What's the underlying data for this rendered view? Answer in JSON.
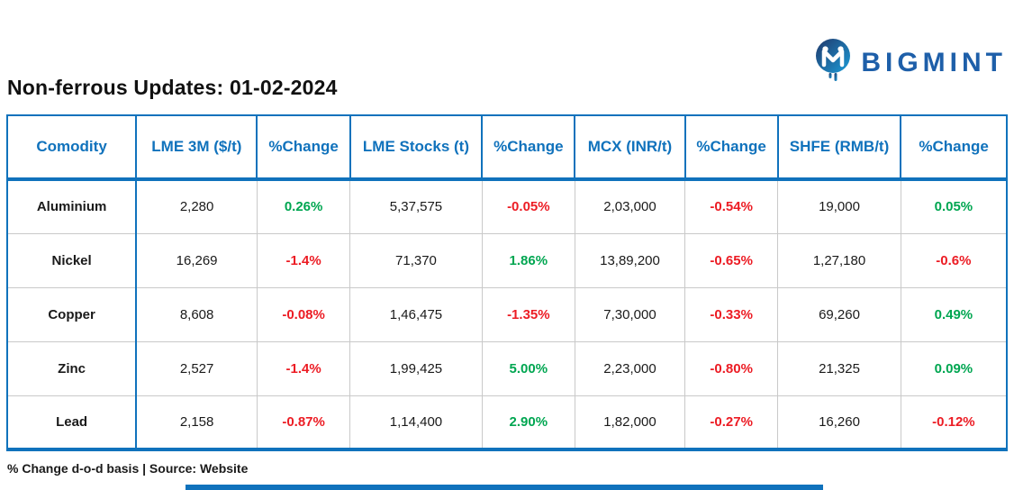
{
  "brand": {
    "name": "BIGMINT"
  },
  "title": "Non-ferrous Updates: 01-02-2024",
  "footnote": "% Change d-o-d basis | Source: Website",
  "colors": {
    "header_blue": "#1072BC",
    "positive_green": "#00A651",
    "negative_red": "#EC1C24",
    "grid_gray": "#C9C9C9",
    "text_black": "#1A1A1A",
    "logo_navy": "#21386B",
    "logo_light_blue": "#1B9CD8"
  },
  "chart_data": {
    "type": "table",
    "title": "Non-ferrous Updates: 01-02-2024",
    "columns": [
      "Comodity",
      "LME 3M ($/t)",
      "%Change",
      "LME Stocks (t)",
      "%Change",
      "MCX (INR/t)",
      "%Change",
      "SHFE (RMB/t)",
      "%Change"
    ],
    "rows": [
      [
        "Aluminium",
        "2,280",
        "0.26%",
        "5,37,575",
        "-0.05%",
        "2,03,000",
        "-0.54%",
        "19,000",
        "0.05%"
      ],
      [
        "Nickel",
        "16,269",
        "-1.4%",
        "71,370",
        "1.86%",
        "13,89,200",
        "-0.65%",
        "1,27,180",
        "-0.6%"
      ],
      [
        "Copper",
        "8,608",
        "-0.08%",
        "1,46,475",
        "-1.35%",
        "7,30,000",
        "-0.33%",
        "69,260",
        "0.49%"
      ],
      [
        "Zinc",
        "2,527",
        "-1.4%",
        "1,99,425",
        "5.00%",
        "2,23,000",
        "-0.80%",
        "21,325",
        "0.09%"
      ],
      [
        "Lead",
        "2,158",
        "-0.87%",
        "1,14,400",
        "2.90%",
        "1,82,000",
        "-0.27%",
        "16,260",
        "-0.12%"
      ]
    ],
    "notes": "%Change cells are green when positive, red when negative; change is day-on-day basis"
  }
}
